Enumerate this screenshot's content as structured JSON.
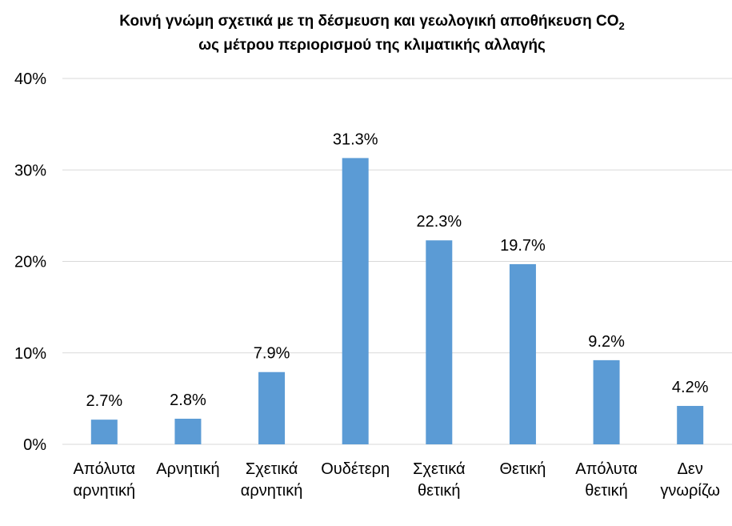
{
  "chart_data": {
    "type": "bar",
    "title": "Κοινή γνώμη σχετικά με τη δέσμευση και γεωλογική αποθήκευση CO",
    "title_subscript": "2",
    "subtitle": "ως μέτρου περιορισμού της κλιματικής αλλαγής",
    "xlabel": "",
    "ylabel": "",
    "ylim": [
      0,
      40
    ],
    "y_ticks": [
      "0%",
      "10%",
      "20%",
      "30%",
      "40%"
    ],
    "grid": true,
    "categories": [
      [
        "Απόλυτα",
        "αρνητική"
      ],
      [
        "Αρνητική"
      ],
      [
        "Σχετικά",
        "αρνητική"
      ],
      [
        "Ουδέτερη"
      ],
      [
        "Σχετικά",
        "θετική"
      ],
      [
        "Θετική"
      ],
      [
        "Απόλυτα",
        "θετική"
      ],
      [
        "Δεν",
        "γνωρίζω"
      ]
    ],
    "values": [
      2.7,
      2.8,
      7.9,
      31.3,
      22.3,
      19.7,
      9.2,
      4.2
    ],
    "data_labels": [
      "2.7%",
      "2.8%",
      "7.9%",
      "31.3%",
      "22.3%",
      "19.7%",
      "9.2%",
      "4.2%"
    ],
    "bar_color": "#5b9bd5",
    "grid_color": "#d9d9d9"
  }
}
